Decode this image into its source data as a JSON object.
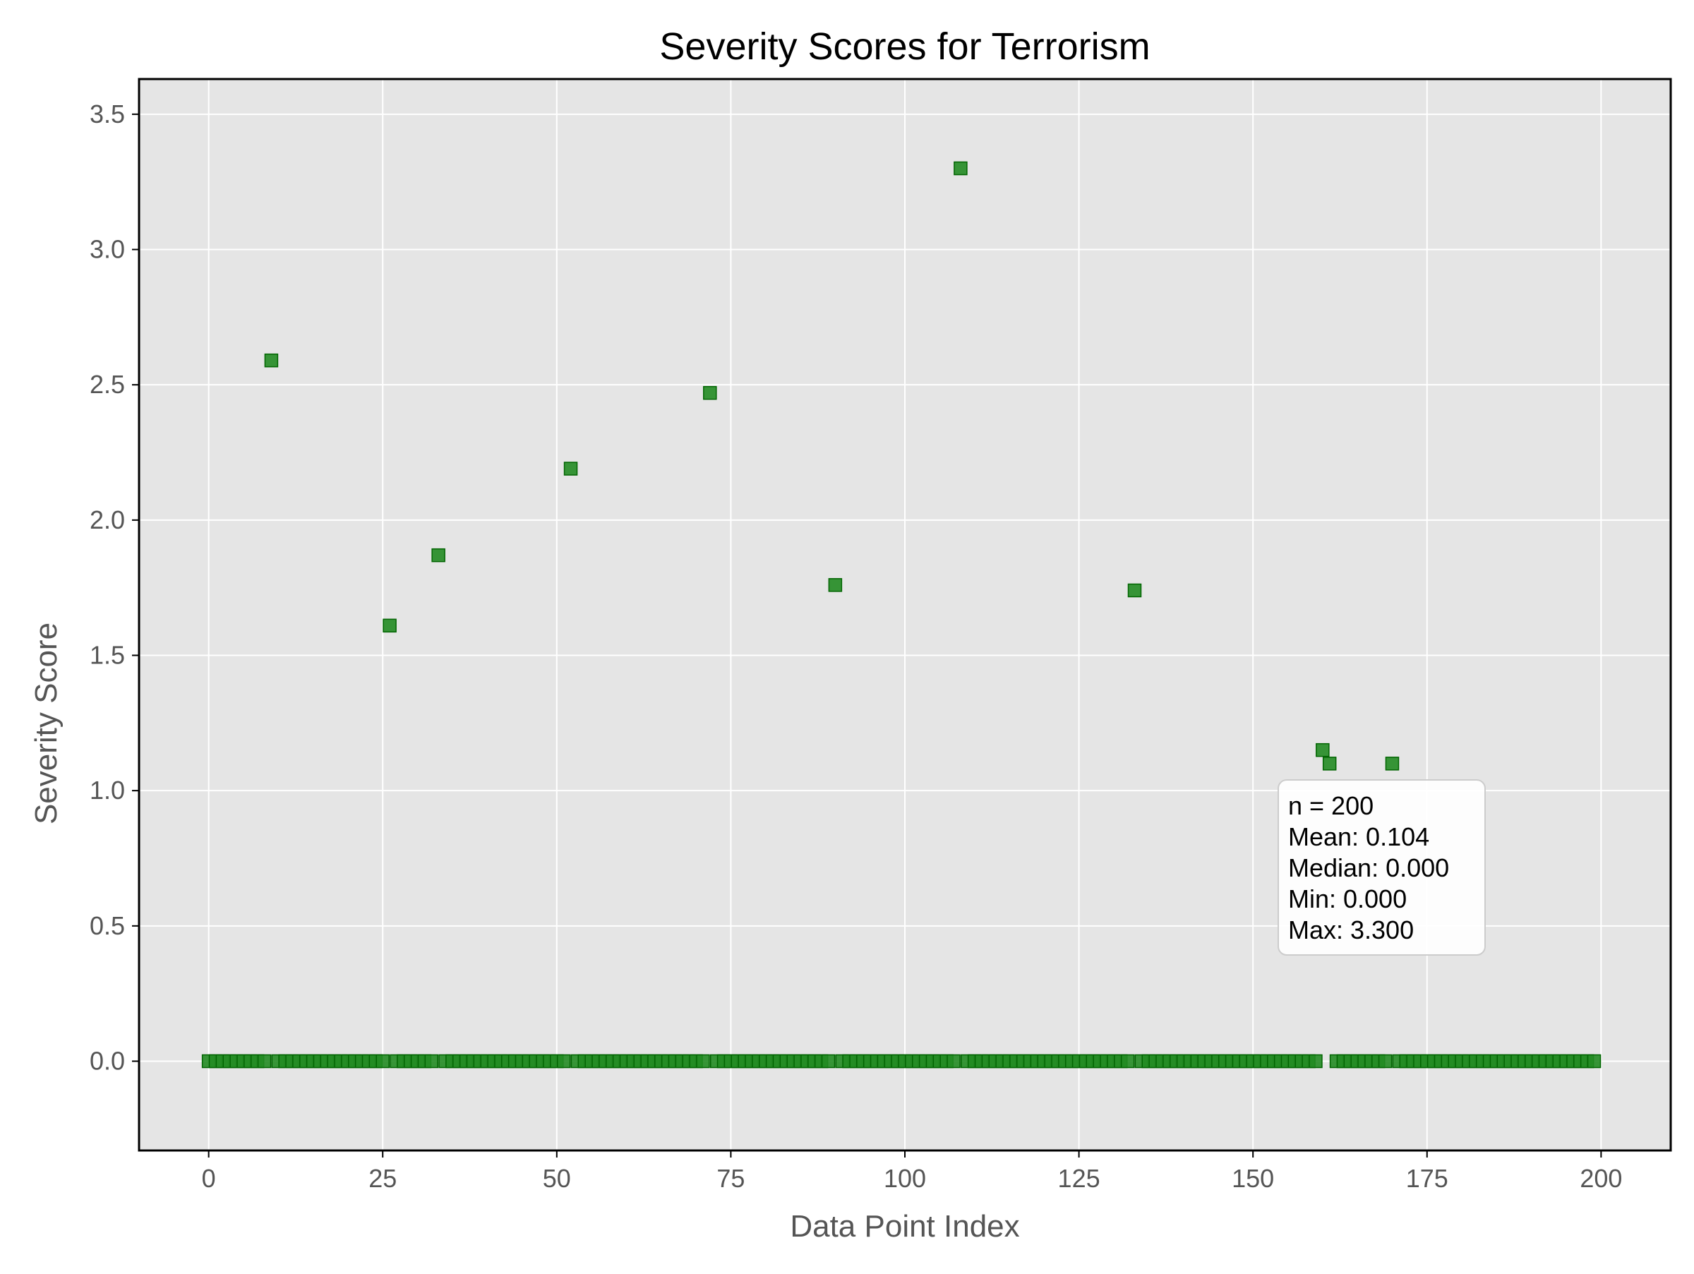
{
  "chart_data": {
    "type": "scatter",
    "title": "Severity Scores for Terrorism",
    "xlabel": "Data Point Index",
    "ylabel": "Severity Score",
    "xlim": [
      -10,
      210
    ],
    "ylim": [
      -0.33,
      3.63
    ],
    "xticks": [
      0,
      25,
      50,
      75,
      100,
      125,
      150,
      175,
      200
    ],
    "yticks": [
      0.0,
      0.5,
      1.0,
      1.5,
      2.0,
      2.5,
      3.0,
      3.5
    ],
    "xtick_labels": [
      "0",
      "25",
      "50",
      "75",
      "100",
      "125",
      "150",
      "175",
      "200"
    ],
    "ytick_labels": [
      "0.0",
      "0.5",
      "1.0",
      "1.5",
      "2.0",
      "2.5",
      "3.0",
      "3.5"
    ],
    "grid": true,
    "marker": "square",
    "colors": {
      "marker_fill": "#228B22",
      "marker_edge": "#006400",
      "plot_background": "#E5E5E5",
      "grid": "#FFFFFF",
      "frame": "#000000",
      "tick_text": "#555555"
    },
    "n_points": 200,
    "nonzero_points": [
      {
        "x": 9,
        "y": 2.59
      },
      {
        "x": 26,
        "y": 1.61
      },
      {
        "x": 33,
        "y": 1.87
      },
      {
        "x": 52,
        "y": 2.19
      },
      {
        "x": 72,
        "y": 2.47
      },
      {
        "x": 90,
        "y": 1.76
      },
      {
        "x": 108,
        "y": 3.3
      },
      {
        "x": 133,
        "y": 1.74
      },
      {
        "x": 160,
        "y": 1.15
      },
      {
        "x": 161,
        "y": 1.1
      },
      {
        "x": 170,
        "y": 1.1
      }
    ],
    "zero_value": 0.0,
    "stats_box": {
      "lines": [
        "n = 200",
        "Mean: 0.104",
        "Median: 0.000",
        "Min: 0.000",
        "Max: 3.300"
      ]
    }
  }
}
